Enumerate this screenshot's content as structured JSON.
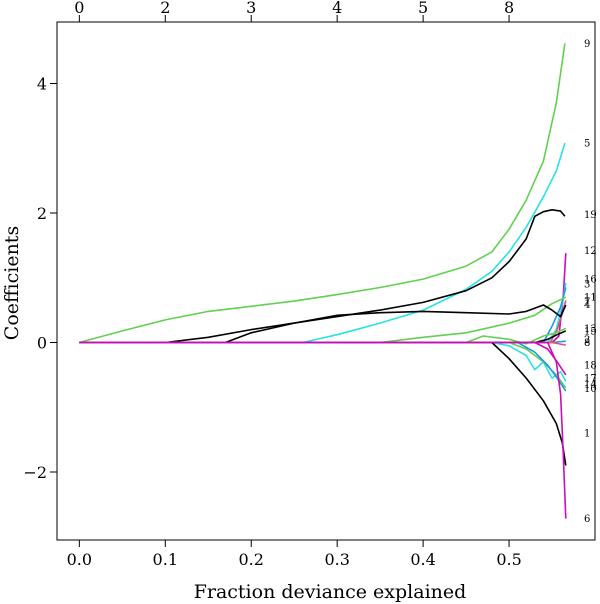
{
  "chart_data": {
    "type": "line",
    "title": "",
    "xlabel": "Fraction deviance explained",
    "ylabel": "Coefficients",
    "xlim": [
      -0.026,
      0.6
    ],
    "ylim": [
      -3.05,
      4.95
    ],
    "x_ticks": [
      "0.0",
      "0.1",
      "0.2",
      "0.3",
      "0.4",
      "0.5"
    ],
    "x_tick_values": [
      0.0,
      0.1,
      0.2,
      0.3,
      0.4,
      0.5
    ],
    "y_ticks": [
      "−2",
      "0",
      "2",
      "4"
    ],
    "y_tick_values": [
      -2,
      0,
      2,
      4
    ],
    "top_axis": {
      "label": "",
      "ticks": [
        "0",
        "2",
        "3",
        "4",
        "5",
        "8"
      ],
      "tick_positions": [
        0.0,
        0.1,
        0.2,
        0.3,
        0.4,
        0.5
      ]
    },
    "grid": false,
    "colors": {
      "black": "#000000",
      "green": "#61D04F",
      "cyan": "#28E2E5",
      "magenta": "#CD0BBC",
      "blue": "#2297E6",
      "pink": "#DF536B"
    },
    "series": [
      {
        "label": "9",
        "color": "#61D04F",
        "x": [
          0.0,
          0.05,
          0.1,
          0.15,
          0.2,
          0.25,
          0.3,
          0.35,
          0.4,
          0.45,
          0.48,
          0.5,
          0.52,
          0.54,
          0.555,
          0.565
        ],
        "y": [
          0.0,
          0.18,
          0.35,
          0.48,
          0.56,
          0.64,
          0.74,
          0.85,
          0.98,
          1.18,
          1.4,
          1.75,
          2.2,
          2.8,
          3.7,
          4.62
        ]
      },
      {
        "label": "5",
        "color": "#28E2E5",
        "x": [
          0.26,
          0.3,
          0.35,
          0.4,
          0.45,
          0.48,
          0.5,
          0.52,
          0.54,
          0.555,
          0.565
        ],
        "y": [
          0.0,
          0.12,
          0.3,
          0.5,
          0.82,
          1.1,
          1.4,
          1.78,
          2.25,
          2.65,
          3.08
        ]
      },
      {
        "label": "19",
        "color": "#000000",
        "x": [
          0.1,
          0.15,
          0.2,
          0.25,
          0.3,
          0.35,
          0.4,
          0.45,
          0.48,
          0.5,
          0.52,
          0.53,
          0.54,
          0.55,
          0.56,
          0.565
        ],
        "y": [
          0.0,
          0.08,
          0.2,
          0.3,
          0.4,
          0.5,
          0.62,
          0.8,
          1.0,
          1.25,
          1.6,
          1.95,
          2.02,
          2.05,
          2.03,
          1.95
        ]
      },
      {
        "label": "12",
        "color": "#CD0BBC",
        "x": [
          0.0,
          0.55,
          0.558,
          0.563,
          0.566
        ],
        "y": [
          0.0,
          0.0,
          0.1,
          0.7,
          1.38
        ]
      },
      {
        "label": "16",
        "color": "#28E2E5",
        "x": [
          0.0,
          0.545,
          0.555,
          0.562,
          0.566
        ],
        "y": [
          0.0,
          0.0,
          0.2,
          0.6,
          0.92
        ]
      },
      {
        "label": "3",
        "color": "#2297E6",
        "x": [
          0.0,
          0.54,
          0.55,
          0.56,
          0.566
        ],
        "y": [
          0.0,
          0.0,
          0.25,
          0.55,
          0.85
        ]
      },
      {
        "label": "11",
        "color": "#61D04F",
        "x": [
          0.35,
          0.4,
          0.45,
          0.5,
          0.53,
          0.55,
          0.566
        ],
        "y": [
          0.0,
          0.08,
          0.15,
          0.3,
          0.42,
          0.6,
          0.7
        ]
      },
      {
        "label": "7",
        "color": "#DF536B",
        "x": [
          0.0,
          0.548,
          0.556,
          0.562,
          0.566
        ],
        "y": [
          0.0,
          0.0,
          0.2,
          0.45,
          0.65
        ]
      },
      {
        "label": "4",
        "color": "#000000",
        "x": [
          0.17,
          0.2,
          0.25,
          0.3,
          0.35,
          0.4,
          0.45,
          0.5,
          0.52,
          0.54,
          0.55,
          0.56,
          0.566
        ],
        "y": [
          0.0,
          0.15,
          0.3,
          0.42,
          0.46,
          0.48,
          0.46,
          0.44,
          0.48,
          0.58,
          0.5,
          0.4,
          0.58
        ]
      },
      {
        "label": "13",
        "color": "#61D04F",
        "x": [
          0.45,
          0.47,
          0.5,
          0.52,
          0.54,
          0.555,
          0.566
        ],
        "y": [
          0.0,
          0.1,
          0.05,
          -0.02,
          0.1,
          0.15,
          0.22
        ]
      },
      {
        "label": "15",
        "color": "#000000",
        "x": [
          0.0,
          0.53,
          0.545,
          0.556,
          0.566
        ],
        "y": [
          0.0,
          0.0,
          0.05,
          0.12,
          0.18
        ]
      },
      {
        "label": "2",
        "color": "#2297E6",
        "x": [
          0.0,
          0.55,
          0.566
        ],
        "y": [
          0.0,
          0.0,
          0.02
        ]
      },
      {
        "label": "8",
        "color": "#DF536B",
        "x": [
          0.0,
          0.55,
          0.566
        ],
        "y": [
          0.0,
          0.0,
          -0.04
        ]
      },
      {
        "label": "18",
        "color": "#CD0BBC",
        "x": [
          0.0,
          0.53,
          0.545,
          0.556,
          0.566
        ],
        "y": [
          0.0,
          0.0,
          -0.1,
          -0.3,
          -0.5
        ]
      },
      {
        "label": "17",
        "color": "#28E2E5",
        "x": [
          0.48,
          0.5,
          0.52,
          0.53,
          0.54,
          0.55,
          0.56,
          0.566
        ],
        "y": [
          0.0,
          -0.05,
          -0.2,
          -0.42,
          -0.3,
          -0.55,
          -0.45,
          -0.6
        ]
      },
      {
        "label": "14",
        "color": "#61D04F",
        "x": [
          0.5,
          0.52,
          0.54,
          0.555,
          0.566
        ],
        "y": [
          0.0,
          -0.1,
          -0.3,
          -0.5,
          -0.7
        ]
      },
      {
        "label": "10",
        "color": "#2297E6",
        "x": [
          0.51,
          0.53,
          0.545,
          0.556,
          0.566
        ],
        "y": [
          0.0,
          -0.15,
          -0.35,
          -0.55,
          -0.75
        ]
      },
      {
        "label": "1",
        "color": "#000000",
        "x": [
          0.48,
          0.5,
          0.52,
          0.54,
          0.555,
          0.562,
          0.566
        ],
        "y": [
          0.0,
          -0.25,
          -0.55,
          -0.9,
          -1.25,
          -1.55,
          -1.9
        ]
      },
      {
        "label": "6",
        "color": "#CD0BBC",
        "x": [
          0.0,
          0.545,
          0.555,
          0.56,
          0.563,
          0.566
        ],
        "y": [
          0.0,
          0.0,
          -0.3,
          -0.8,
          -1.7,
          -2.72
        ]
      }
    ],
    "end_labels": [
      {
        "text": "9",
        "y": 4.62
      },
      {
        "text": "5",
        "y": 3.08
      },
      {
        "text": "19",
        "y": 1.98
      },
      {
        "text": "12",
        "y": 1.42
      },
      {
        "text": "16",
        "y": 0.98
      },
      {
        "text": "3",
        "y": 0.9
      },
      {
        "text": "11",
        "y": 0.7
      },
      {
        "text": "7",
        "y": 0.63
      },
      {
        "text": "4",
        "y": 0.59
      },
      {
        "text": "13",
        "y": 0.22
      },
      {
        "text": "15",
        "y": 0.18
      },
      {
        "text": "2",
        "y": 0.05
      },
      {
        "text": "8",
        "y": 0.0
      },
      {
        "text": "18",
        "y": -0.35
      },
      {
        "text": "17",
        "y": -0.55
      },
      {
        "text": "14",
        "y": -0.64
      },
      {
        "text": "10",
        "y": -0.71
      },
      {
        "text": "1",
        "y": -1.4
      },
      {
        "text": "6",
        "y": -2.72
      }
    ]
  }
}
